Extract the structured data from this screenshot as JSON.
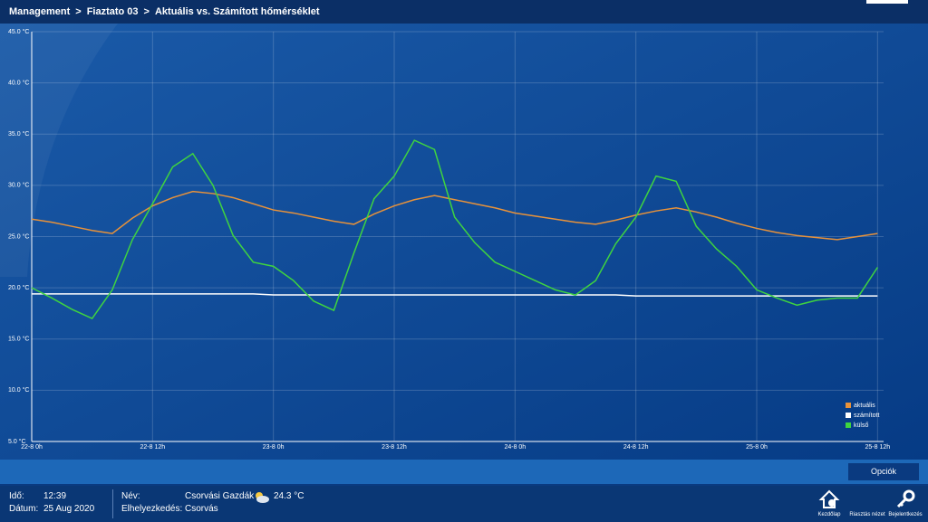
{
  "header": {
    "breadcrumb": [
      "Management",
      "Fiaztato 03",
      "Aktuális vs. Számított hőmérséklet"
    ],
    "separator": ">"
  },
  "chart_data": {
    "type": "line",
    "x": [
      0,
      2,
      4,
      6,
      8,
      10,
      12,
      14,
      16,
      18,
      20,
      22,
      24,
      26,
      28,
      30,
      32,
      34,
      36,
      38,
      40,
      42,
      44,
      46,
      48,
      50,
      52,
      54,
      56,
      58,
      60,
      62,
      64,
      66,
      68,
      70,
      72,
      74,
      76,
      78,
      80,
      82,
      84
    ],
    "xlim": [
      0,
      84.6
    ],
    "xticks": [
      {
        "value": 0,
        "label": "22-8 0h"
      },
      {
        "value": 12,
        "label": "22-8 12h"
      },
      {
        "value": 24,
        "label": "23-8 0h"
      },
      {
        "value": 36,
        "label": "23-8 12h"
      },
      {
        "value": 48,
        "label": "24-8 0h"
      },
      {
        "value": 60,
        "label": "24-8 12h"
      },
      {
        "value": 72,
        "label": "25-8 0h"
      },
      {
        "value": 84,
        "label": "25-8 12h"
      }
    ],
    "ylim": [
      5,
      45
    ],
    "yticks": [
      {
        "value": 5,
        "label": "5.0 °C"
      },
      {
        "value": 10,
        "label": "10.0 °C"
      },
      {
        "value": 15,
        "label": "15.0 °C"
      },
      {
        "value": 20,
        "label": "20.0 °C"
      },
      {
        "value": 25,
        "label": "25.0 °C"
      },
      {
        "value": 30,
        "label": "30.0 °C"
      },
      {
        "value": 35,
        "label": "35.0 °C"
      },
      {
        "value": 40,
        "label": "40.0 °C"
      },
      {
        "value": 45,
        "label": "45.0 °C"
      }
    ],
    "grid": true,
    "legend": "bottom-right",
    "series": [
      {
        "name": "aktuális",
        "color": "#e8923a",
        "values": [
          26.7,
          26.4,
          26.0,
          25.6,
          25.3,
          26.8,
          28.0,
          28.8,
          29.4,
          29.2,
          28.8,
          28.2,
          27.6,
          27.3,
          26.9,
          26.5,
          26.2,
          27.2,
          28.0,
          28.6,
          29.0,
          28.6,
          28.2,
          27.8,
          27.3,
          27.0,
          26.7,
          26.4,
          26.2,
          26.6,
          27.1,
          27.5,
          27.8,
          27.4,
          26.9,
          26.3,
          25.8,
          25.4,
          25.1,
          24.9,
          24.7,
          25.0,
          25.3
        ]
      },
      {
        "name": "számított",
        "color": "#ffffff",
        "values": [
          19.4,
          19.4,
          19.4,
          19.4,
          19.4,
          19.4,
          19.4,
          19.4,
          19.4,
          19.4,
          19.4,
          19.4,
          19.3,
          19.3,
          19.3,
          19.3,
          19.3,
          19.3,
          19.3,
          19.3,
          19.3,
          19.3,
          19.3,
          19.3,
          19.3,
          19.3,
          19.3,
          19.3,
          19.3,
          19.3,
          19.2,
          19.2,
          19.2,
          19.2,
          19.2,
          19.2,
          19.2,
          19.2,
          19.2,
          19.2,
          19.2,
          19.2,
          19.2
        ]
      },
      {
        "name": "külső",
        "color": "#3fd43f",
        "values": [
          20.0,
          19.0,
          17.9,
          17.0,
          19.8,
          24.7,
          28.2,
          31.8,
          33.1,
          30.0,
          25.1,
          22.5,
          22.1,
          20.7,
          18.7,
          17.8,
          23.4,
          28.7,
          30.9,
          34.4,
          33.5,
          26.9,
          24.4,
          22.5,
          21.6,
          20.7,
          19.8,
          19.3,
          20.7,
          24.3,
          26.9,
          30.9,
          30.4,
          26.0,
          23.8,
          22.1,
          19.8,
          19.0,
          18.3,
          18.8,
          19.0,
          19.0,
          22.0
        ]
      }
    ]
  },
  "options_button": "Opciók",
  "footer": {
    "time_label": "Idő:",
    "time": "12:39",
    "date_label": "Dátum:",
    "date": "25 Aug 2020",
    "name_label": "Név:",
    "name": "Csorvási Gazdák",
    "location_label": "Elhelyezkedés:",
    "location": "Csorvás",
    "temperature": "24.3 °C",
    "nav": [
      "Kezdőlap",
      "Riasztás nézet",
      "Bejelentkezés"
    ]
  }
}
